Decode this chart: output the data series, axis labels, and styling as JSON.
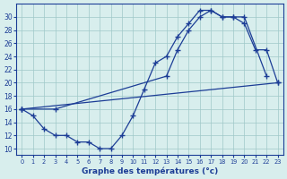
{
  "curve1_x": [
    0,
    1,
    2,
    3,
    4,
    5,
    6,
    7,
    8,
    9,
    10,
    11,
    12,
    13,
    14,
    15,
    16,
    17,
    18,
    19,
    20,
    22
  ],
  "curve1_y": [
    16,
    15,
    13,
    12,
    12,
    11,
    11,
    10,
    10,
    12,
    15,
    19,
    23,
    24,
    27,
    29,
    31,
    31,
    30,
    30,
    30,
    21
  ],
  "curve2_x": [
    0,
    3,
    13,
    14,
    15,
    16,
    17,
    18,
    19,
    20,
    21,
    22,
    23
  ],
  "curve2_y": [
    16,
    16,
    21,
    25,
    28,
    30,
    31,
    30,
    30,
    29,
    25,
    25,
    20
  ],
  "curve3_x": [
    0,
    23
  ],
  "curve3_y": [
    16,
    20
  ],
  "line_color": "#1c3d96",
  "bg_color": "#d8eeed",
  "grid_color": "#9fc8c8",
  "xlabel": "Graphe des températures (°c)",
  "xlim": [
    -0.5,
    23.5
  ],
  "ylim": [
    9,
    32
  ],
  "yticks": [
    10,
    12,
    14,
    16,
    18,
    20,
    22,
    24,
    26,
    28,
    30
  ],
  "xticks": [
    0,
    1,
    2,
    3,
    4,
    5,
    6,
    7,
    8,
    9,
    10,
    11,
    12,
    13,
    14,
    15,
    16,
    17,
    18,
    19,
    20,
    21,
    22,
    23
  ]
}
